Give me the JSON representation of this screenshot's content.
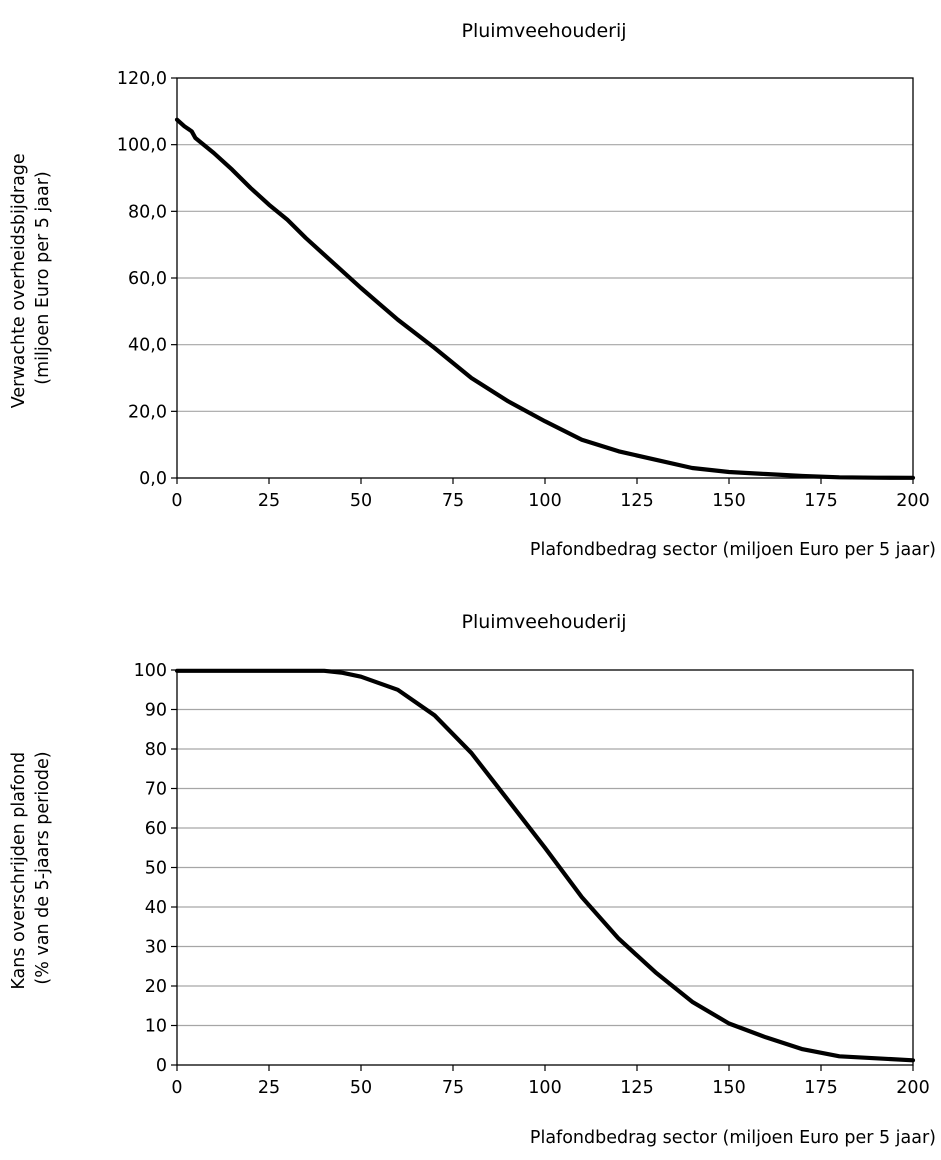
{
  "chart_data": [
    {
      "type": "line",
      "title": "Pluimveehouderij",
      "xlabel": "Plafondbedrag sector (miljoen Euro per 5 jaar)",
      "ylabel": [
        "Verwachte overheidsbijdrage",
        "(miljoen Euro per 5 jaar)"
      ],
      "xlim": [
        0,
        200
      ],
      "ylim": [
        0,
        120
      ],
      "xticks": [
        0,
        25,
        50,
        75,
        100,
        125,
        150,
        175,
        200
      ],
      "xtick_labels": [
        "0",
        "25",
        "50",
        "75",
        "100",
        "125",
        "150",
        "175",
        "200"
      ],
      "yticks": [
        0,
        20,
        40,
        60,
        80,
        100,
        120
      ],
      "ytick_labels": [
        "0,0",
        "20,0",
        "40,0",
        "60,0",
        "80,0",
        "100,0",
        "120,0"
      ],
      "grid": "horizontal",
      "series": [
        {
          "color": "#000000",
          "x": [
            0,
            2,
            4,
            5,
            10,
            15,
            20,
            25,
            30,
            35,
            40,
            50,
            60,
            70,
            80,
            90,
            100,
            110,
            120,
            130,
            140,
            150,
            160,
            170,
            180,
            190,
            200
          ],
          "y": [
            107.5,
            105.5,
            104,
            102,
            97.5,
            92.5,
            87,
            82,
            77.5,
            72,
            67,
            57,
            47.5,
            39,
            30,
            23,
            17,
            11.5,
            8,
            5.5,
            3,
            1.8,
            1.2,
            0.6,
            0.2,
            0.1,
            0.05
          ]
        }
      ]
    },
    {
      "type": "line",
      "title": "Pluimveehouderij",
      "xlabel": "Plafondbedrag sector (miljoen Euro per 5 jaar)",
      "ylabel": [
        "Kans overschrijden plafond",
        "(% van de 5-jaars periode)"
      ],
      "xlim": [
        0,
        200
      ],
      "ylim": [
        0,
        100
      ],
      "xticks": [
        0,
        25,
        50,
        75,
        100,
        125,
        150,
        175,
        200
      ],
      "xtick_labels": [
        "0",
        "25",
        "50",
        "75",
        "100",
        "125",
        "150",
        "175",
        "200"
      ],
      "yticks": [
        0,
        10,
        20,
        30,
        40,
        50,
        60,
        70,
        80,
        90,
        100
      ],
      "ytick_labels": [
        "0",
        "10",
        "20",
        "30",
        "40",
        "50",
        "60",
        "70",
        "80",
        "90",
        "100"
      ],
      "grid": "horizontal",
      "series": [
        {
          "color": "#000000",
          "x": [
            0,
            10,
            20,
            30,
            40,
            45,
            50,
            60,
            70,
            80,
            90,
            100,
            110,
            120,
            130,
            140,
            150,
            160,
            170,
            180,
            190,
            200
          ],
          "y": [
            99.8,
            99.8,
            99.8,
            99.8,
            99.8,
            99.3,
            98.3,
            95,
            88.5,
            79,
            67,
            55,
            42.5,
            32,
            23.5,
            16,
            10.5,
            7,
            4,
            2.2,
            1.7,
            1.2
          ]
        }
      ]
    }
  ]
}
